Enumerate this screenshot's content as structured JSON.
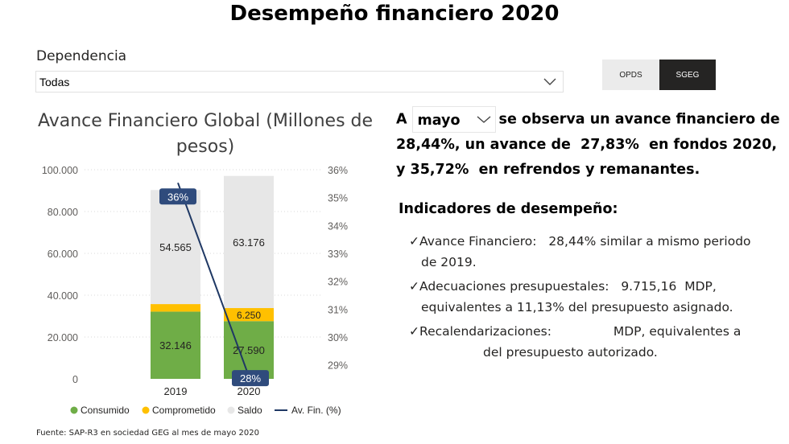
{
  "page": {
    "title": "Desempeño financiero 2020"
  },
  "filter": {
    "label": "Dependencia",
    "value": "Todas"
  },
  "segments": {
    "opds": "OPDS",
    "sgeg": "SGEG"
  },
  "summary": {
    "prefix": "A",
    "month": "mayo",
    "text1": "se observa un avance financiero de",
    "pct_avance": "28,44%",
    "text2": ", un avance de",
    "pct_fondos": "27,83%",
    "text3": "en fondos 2020, y",
    "pct_refrendos": "35,72%",
    "text4": "en refrendos y remanantes."
  },
  "indicators": {
    "title": "Indicadores de desempeño:",
    "items": [
      {
        "check": "✓",
        "label": "Avance Financiero:",
        "value": "28,44%",
        "text": "similar a mismo periodo",
        "line2": "de 2019."
      },
      {
        "check": "✓",
        "label": "Adecuaciones presupuestales:",
        "value": "9.715,16",
        "unit": "MDP,",
        "line2": "equivalentes a 11,13% del presupuesto asignado."
      },
      {
        "check": "✓",
        "label": "Recalendarizaciones:",
        "unit": "MDP, equivalentes a",
        "line2": "del presupuesto autorizado."
      }
    ]
  },
  "source": "Fuente: SAP-R3 en sociedad GEG al mes de  mayo  2020",
  "colors": {
    "consumido": "#6fad47",
    "comprometido": "#ffc000",
    "saldo": "#e7e7e7",
    "line": "#1f3864",
    "label_bg": "#2f4b7c"
  },
  "chart_data": {
    "type": "bar",
    "title": "Avance Financiero Global (Millones de pesos)",
    "categories": [
      "2019",
      "2020"
    ],
    "stacked": true,
    "ylim": [
      0,
      100000
    ],
    "y_ticks": [
      "0",
      "20.000",
      "40.000",
      "60.000",
      "80.000",
      "100.000"
    ],
    "y2lim": [
      0.285,
      0.36
    ],
    "y2_ticks": [
      "29%",
      "30%",
      "31%",
      "32%",
      "33%",
      "34%",
      "35%",
      "36%"
    ],
    "series": [
      {
        "name": "Consumido",
        "values": [
          32146,
          27590
        ],
        "labels": [
          "32.146",
          "27.590"
        ]
      },
      {
        "name": "Comprometido",
        "values": [
          3600,
          6250
        ],
        "labels": [
          "",
          "6.250"
        ]
      },
      {
        "name": "Saldo",
        "values": [
          54565,
          63176
        ],
        "labels": [
          "54.565",
          "63.176"
        ]
      }
    ],
    "line": {
      "name": "Av. Fin. (%)",
      "values": [
        0.3553,
        0.2844
      ],
      "labels": [
        "36%",
        "28%"
      ]
    },
    "legend_position": "bottom",
    "grid": true
  }
}
